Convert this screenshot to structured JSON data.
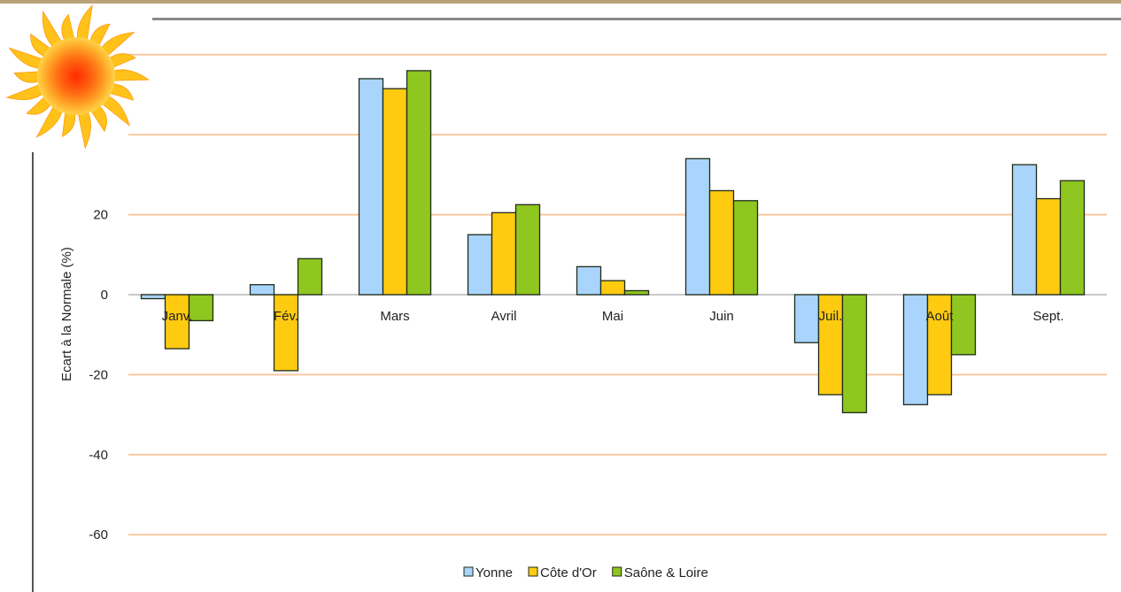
{
  "colors": {
    "gridline": "#f6c9a0",
    "zero_line": "#b7b7b7",
    "bar_stroke": "#1f2b1a",
    "text": "#222222",
    "frame": "#b9a27a"
  },
  "logo": {
    "icon": "sun-icon"
  },
  "chart_data": {
    "type": "bar",
    "title": "",
    "xlabel": "",
    "ylabel": "Ecart à la Normale (%)",
    "ylim": [
      -70,
      60
    ],
    "yticks": [
      -60,
      -40,
      -20,
      0,
      20
    ],
    "grid": true,
    "legend_position": "bottom",
    "categories": [
      "Janv.",
      "Fév.",
      "Mars",
      "Avril",
      "Mai",
      "Juin",
      "Juil.",
      "Août",
      "Sept."
    ],
    "series": [
      {
        "name": "Yonne",
        "color": "#a9d4fb",
        "values": [
          -1,
          2.5,
          54,
          15,
          7,
          34,
          -12,
          -27.5,
          32.5
        ]
      },
      {
        "name": "Côte d'Or",
        "color": "#fecb10",
        "values": [
          -13.5,
          -19,
          51.5,
          20.5,
          3.5,
          26,
          -25,
          -25,
          24
        ]
      },
      {
        "name": "Saône & Loire",
        "color": "#8fc61f",
        "values": [
          -6.5,
          9,
          56,
          22.5,
          1,
          23.5,
          -29.5,
          -15,
          28.5
        ]
      }
    ]
  }
}
